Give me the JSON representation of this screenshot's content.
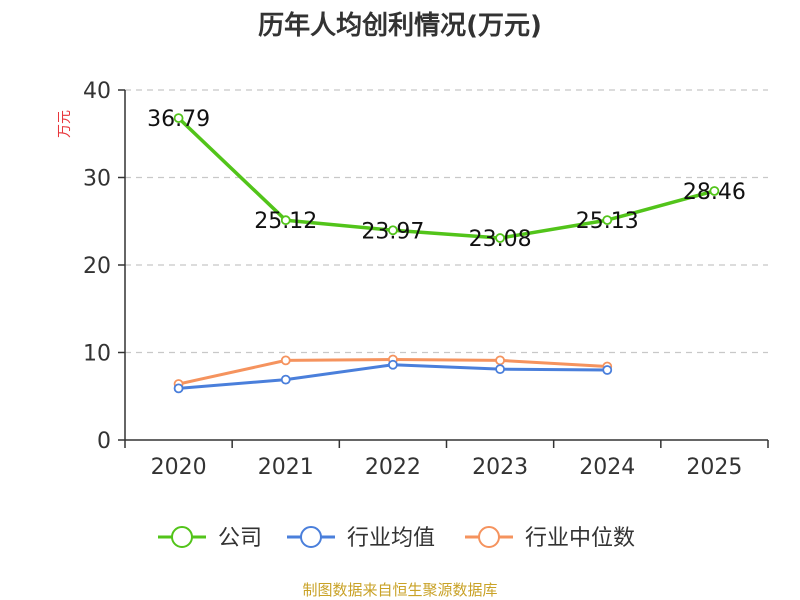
{
  "chart_data": {
    "type": "line",
    "title": "历年人均创利情况(万元)",
    "ylabel": "万元",
    "xlabel": "",
    "categories": [
      "2020",
      "2021",
      "2022",
      "2023",
      "2024",
      "2025"
    ],
    "ylim": [
      0,
      40
    ],
    "yticks": [
      0,
      10,
      20,
      30,
      40
    ],
    "grid": true,
    "legend_position": "bottom",
    "series": [
      {
        "name": "公司",
        "color": "#52c41a",
        "values": [
          36.79,
          25.12,
          23.97,
          23.08,
          25.13,
          28.46
        ],
        "labels": [
          "36.79",
          "25.12",
          "23.97",
          "23.08",
          "25.13",
          "28.46"
        ]
      },
      {
        "name": "行业均值",
        "color": "#4a7fdb",
        "values": [
          5.9,
          6.9,
          8.6,
          8.1,
          8.0,
          null
        ]
      },
      {
        "name": "行业中位数",
        "color": "#f5935e",
        "values": [
          6.4,
          9.1,
          9.2,
          9.1,
          8.4,
          null
        ]
      }
    ]
  },
  "source": "制图数据来自恒生聚源数据库"
}
